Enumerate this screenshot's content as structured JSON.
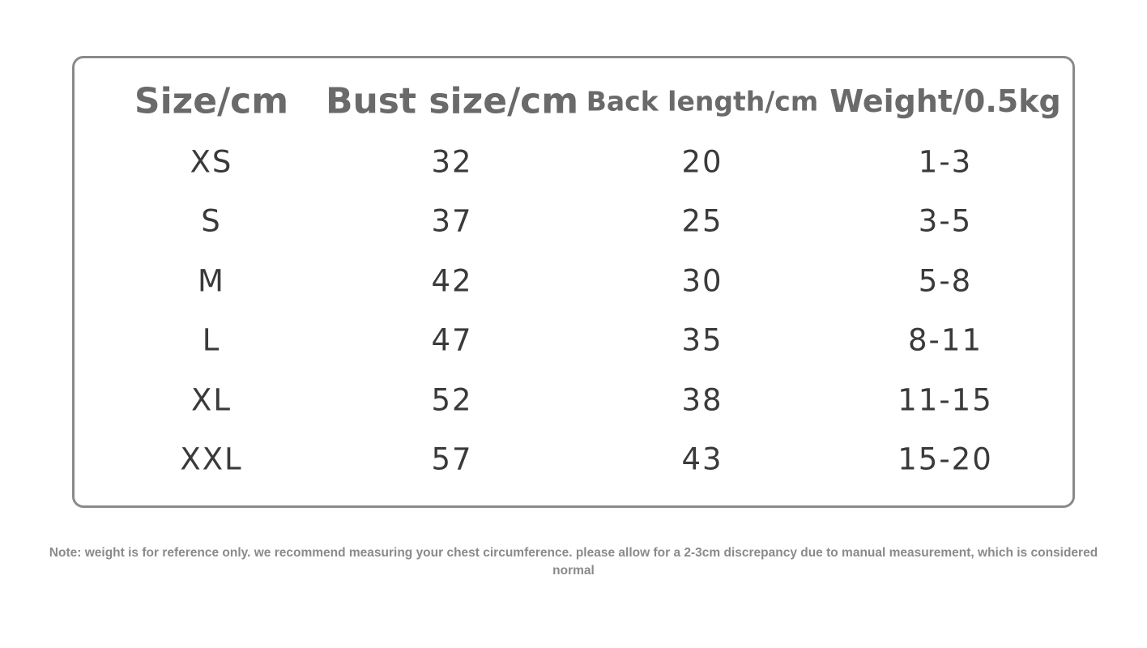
{
  "table": {
    "header": [
      "Size/cm",
      "Bust size/cm",
      "Back length/cm",
      "Weight/0.5kg"
    ],
    "rows": [
      [
        "XS",
        32,
        20,
        "1-3"
      ],
      [
        "S",
        37,
        25,
        "3-5"
      ],
      [
        "M",
        42,
        30,
        "5-8"
      ],
      [
        "L",
        47,
        35,
        "8-11"
      ],
      [
        "XL",
        52,
        38,
        "11-15"
      ],
      [
        "XXL",
        57,
        43,
        "15-20"
      ]
    ]
  },
  "note": "Note: weight is for reference only. we recommend measuring your chest circumference. please allow for a 2-3cm discrepancy due to manual measurement, which is considered normal"
}
